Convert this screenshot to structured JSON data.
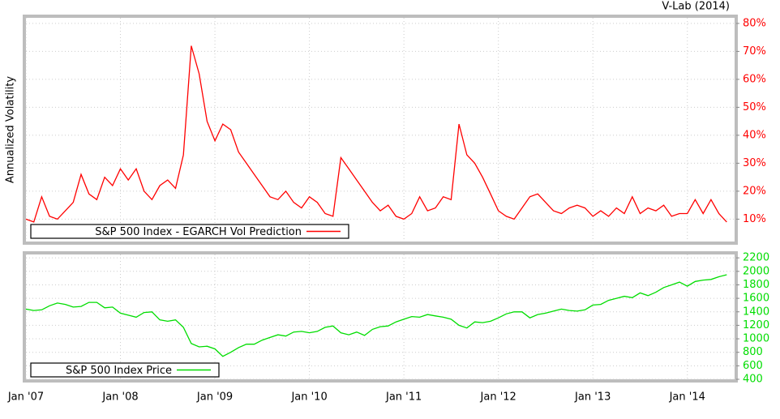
{
  "chart_data": [
    {
      "type": "line",
      "title": "V-Lab (2014)",
      "y_label": "Annualized Volatility",
      "x": [
        "2007-01",
        "2007-02",
        "2007-03",
        "2007-04",
        "2007-05",
        "2007-06",
        "2007-07",
        "2007-08",
        "2007-09",
        "2007-10",
        "2007-11",
        "2007-12",
        "2008-01",
        "2008-02",
        "2008-03",
        "2008-04",
        "2008-05",
        "2008-06",
        "2008-07",
        "2008-08",
        "2008-09",
        "2008-10",
        "2008-11",
        "2008-12",
        "2009-01",
        "2009-02",
        "2009-03",
        "2009-04",
        "2009-05",
        "2009-06",
        "2009-07",
        "2009-08",
        "2009-09",
        "2009-10",
        "2009-11",
        "2009-12",
        "2010-01",
        "2010-02",
        "2010-03",
        "2010-04",
        "2010-05",
        "2010-06",
        "2010-07",
        "2010-08",
        "2010-09",
        "2010-10",
        "2010-11",
        "2010-12",
        "2011-01",
        "2011-02",
        "2011-03",
        "2011-04",
        "2011-05",
        "2011-06",
        "2011-07",
        "2011-08",
        "2011-09",
        "2011-10",
        "2011-11",
        "2011-12",
        "2012-01",
        "2012-02",
        "2012-03",
        "2012-04",
        "2012-05",
        "2012-06",
        "2012-07",
        "2012-08",
        "2012-09",
        "2012-10",
        "2012-11",
        "2012-12",
        "2013-01",
        "2013-02",
        "2013-03",
        "2013-04",
        "2013-05",
        "2013-06",
        "2013-07",
        "2013-08",
        "2013-09",
        "2013-10",
        "2013-11",
        "2013-12",
        "2014-01",
        "2014-02",
        "2014-03",
        "2014-04",
        "2014-05",
        "2014-06"
      ],
      "series": [
        {
          "name": "S&P 500 Index - EGARCH Vol Prediction",
          "color": "#ff0000",
          "values": [
            10,
            9,
            18,
            11,
            10,
            13,
            16,
            26,
            19,
            17,
            25,
            22,
            28,
            24,
            28,
            20,
            17,
            22,
            24,
            21,
            33,
            72,
            62,
            45,
            38,
            44,
            42,
            34,
            30,
            26,
            22,
            18,
            17,
            20,
            16,
            14,
            18,
            16,
            12,
            11,
            32,
            28,
            24,
            20,
            16,
            13,
            15,
            11,
            10,
            12,
            18,
            13,
            14,
            18,
            17,
            44,
            33,
            30,
            25,
            19,
            13,
            11,
            10,
            14,
            18,
            19,
            16,
            13,
            12,
            14,
            15,
            14,
            11,
            13,
            11,
            14,
            12,
            18,
            12,
            14,
            13,
            15,
            11,
            12,
            12,
            17,
            12,
            17,
            12,
            9
          ]
        }
      ],
      "xlim": [
        "2007-01",
        "2014-07"
      ],
      "ylim": [
        2,
        82
      ],
      "yticks": [
        {
          "value": 10,
          "label": "10%"
        },
        {
          "value": 20,
          "label": "20%"
        },
        {
          "value": 30,
          "label": "30%"
        },
        {
          "value": 40,
          "label": "40%"
        },
        {
          "value": 50,
          "label": "50%"
        },
        {
          "value": 60,
          "label": "60%"
        },
        {
          "value": 70,
          "label": "70%"
        },
        {
          "value": 80,
          "label": "80%"
        }
      ],
      "grid": true
    },
    {
      "type": "line",
      "x": [
        "2007-01",
        "2007-02",
        "2007-03",
        "2007-04",
        "2007-05",
        "2007-06",
        "2007-07",
        "2007-08",
        "2007-09",
        "2007-10",
        "2007-11",
        "2007-12",
        "2008-01",
        "2008-02",
        "2008-03",
        "2008-04",
        "2008-05",
        "2008-06",
        "2008-07",
        "2008-08",
        "2008-09",
        "2008-10",
        "2008-11",
        "2008-12",
        "2009-01",
        "2009-02",
        "2009-03",
        "2009-04",
        "2009-05",
        "2009-06",
        "2009-07",
        "2009-08",
        "2009-09",
        "2009-10",
        "2009-11",
        "2009-12",
        "2010-01",
        "2010-02",
        "2010-03",
        "2010-04",
        "2010-05",
        "2010-06",
        "2010-07",
        "2010-08",
        "2010-09",
        "2010-10",
        "2010-11",
        "2010-12",
        "2011-01",
        "2011-02",
        "2011-03",
        "2011-04",
        "2011-05",
        "2011-06",
        "2011-07",
        "2011-08",
        "2011-09",
        "2011-10",
        "2011-11",
        "2011-12",
        "2012-01",
        "2012-02",
        "2012-03",
        "2012-04",
        "2012-05",
        "2012-06",
        "2012-07",
        "2012-08",
        "2012-09",
        "2012-10",
        "2012-11",
        "2012-12",
        "2013-01",
        "2013-02",
        "2013-03",
        "2013-04",
        "2013-05",
        "2013-06",
        "2013-07",
        "2013-08",
        "2013-09",
        "2013-10",
        "2013-11",
        "2013-12",
        "2014-01",
        "2014-02",
        "2014-03",
        "2014-04",
        "2014-05",
        "2014-06"
      ],
      "series": [
        {
          "name": "S&P 500 Index Price",
          "color": "#00dd00",
          "values": [
            1440,
            1420,
            1430,
            1490,
            1530,
            1510,
            1470,
            1480,
            1540,
            1540,
            1460,
            1470,
            1380,
            1350,
            1320,
            1390,
            1400,
            1280,
            1260,
            1280,
            1170,
            930,
            880,
            890,
            850,
            740,
            800,
            870,
            920,
            920,
            980,
            1020,
            1060,
            1040,
            1100,
            1110,
            1090,
            1110,
            1170,
            1190,
            1090,
            1060,
            1100,
            1050,
            1140,
            1180,
            1190,
            1250,
            1290,
            1330,
            1320,
            1360,
            1340,
            1320,
            1290,
            1200,
            1160,
            1250,
            1240,
            1260,
            1310,
            1370,
            1400,
            1400,
            1310,
            1360,
            1380,
            1410,
            1440,
            1420,
            1410,
            1430,
            1500,
            1510,
            1570,
            1600,
            1630,
            1610,
            1680,
            1640,
            1690,
            1760,
            1800,
            1840,
            1780,
            1850,
            1870,
            1880,
            1920,
            1950
          ]
        }
      ],
      "xlim": [
        "2007-01",
        "2014-07"
      ],
      "xticks": [
        {
          "value": "2007-01",
          "label": "Jan '07"
        },
        {
          "value": "2008-01",
          "label": "Jan '08"
        },
        {
          "value": "2009-01",
          "label": "Jan '09"
        },
        {
          "value": "2010-01",
          "label": "Jan '10"
        },
        {
          "value": "2011-01",
          "label": "Jan '11"
        },
        {
          "value": "2012-01",
          "label": "Jan '12"
        },
        {
          "value": "2013-01",
          "label": "Jan '13"
        },
        {
          "value": "2014-01",
          "label": "Jan '14"
        }
      ],
      "ylim": [
        400,
        2250
      ],
      "yticks": [
        400,
        600,
        800,
        1000,
        1200,
        1400,
        1600,
        1800,
        2000,
        2200
      ],
      "grid": true
    }
  ]
}
